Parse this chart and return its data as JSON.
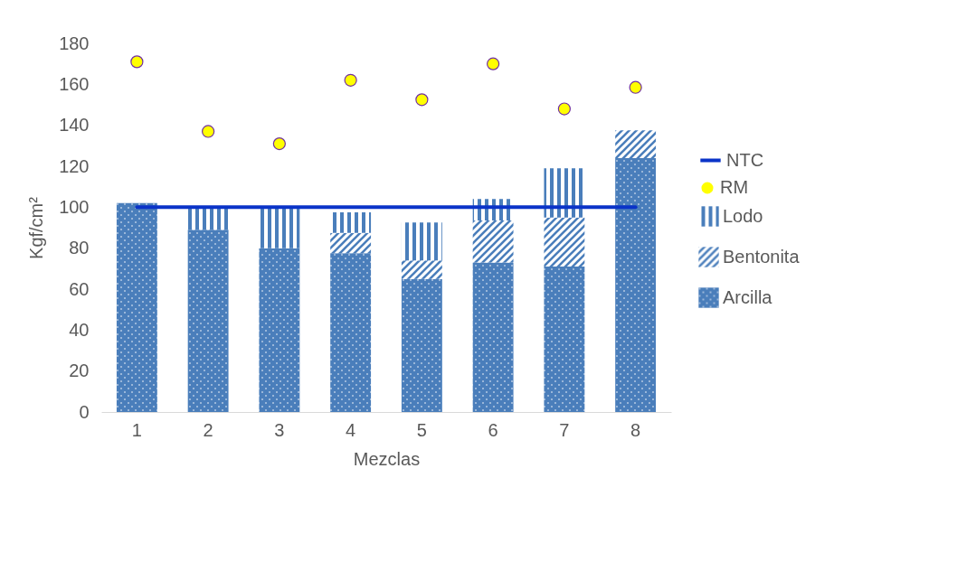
{
  "chart_data": {
    "type": "bar",
    "stacked": true,
    "xlabel": "Mezclas",
    "ylabel": "Kgf/cm²",
    "categories": [
      "1",
      "2",
      "3",
      "4",
      "5",
      "6",
      "7",
      "8"
    ],
    "series": [
      {
        "name": "Arcilla",
        "color": "#4a7ebb",
        "values": [
          102,
          89,
          80,
          77.5,
          65,
          73,
          71,
          124
        ]
      },
      {
        "name": "Bentonita",
        "color": "#4a7ebb",
        "values": [
          null,
          null,
          null,
          10,
          9,
          20.5,
          24,
          13.5
        ]
      },
      {
        "name": "Lodo",
        "color": "#4a7ebb",
        "values": [
          null,
          11,
          20,
          10,
          18.5,
          10.5,
          24,
          null
        ]
      },
      {
        "name": "NTC",
        "type": "line",
        "marker": "none",
        "color": "#0a33c8",
        "values": [
          100,
          100,
          100,
          100,
          100,
          100,
          100,
          100
        ]
      },
      {
        "name": "RM",
        "type": "scatter",
        "marker": "circle",
        "color": "#ffff00",
        "values": [
          171,
          137,
          131,
          162,
          152.5,
          170,
          148,
          158.5
        ]
      }
    ],
    "ylim": [
      0,
      180
    ],
    "yticks": [
      0,
      20,
      40,
      60,
      80,
      100,
      120,
      140,
      160,
      180
    ],
    "grid": false,
    "legend": "right"
  }
}
